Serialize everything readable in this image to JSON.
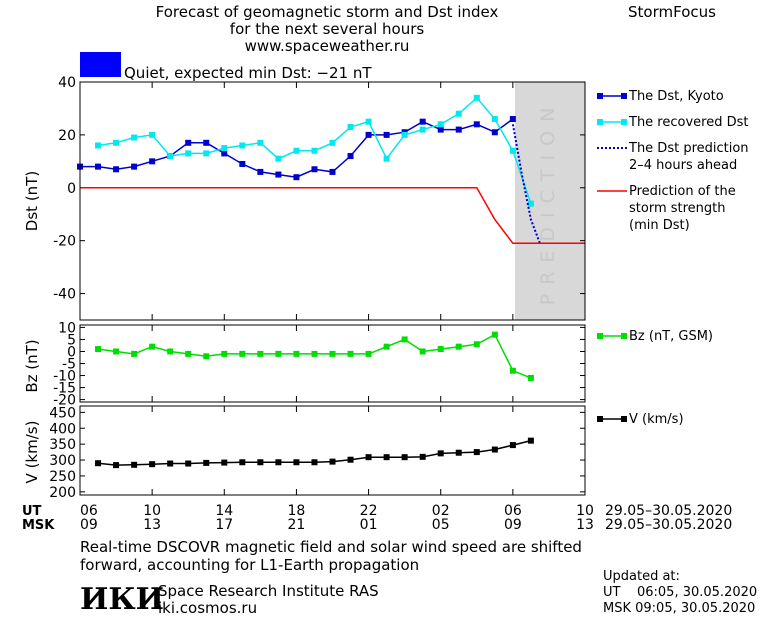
{
  "header": {
    "title_line1": "Forecast of geomagnetic storm and Dst index",
    "title_line2": "for the next several hours",
    "website": "www.spaceweather.ru",
    "brand": "StormFocus"
  },
  "status": {
    "text": "Quiet, expected min Dst: −21 nT",
    "color": "#0000ff"
  },
  "prediction_label": "PREDICTION",
  "time_axis": {
    "ut_label": "UT",
    "msk_label": "MSK",
    "ut_ticks": [
      "06",
      "10",
      "14",
      "18",
      "22",
      "02",
      "06",
      "10"
    ],
    "msk_ticks": [
      "09",
      "13",
      "17",
      "21",
      "01",
      "05",
      "09",
      "13"
    ],
    "ut_range": "29.05–30.05.2020",
    "msk_range": "29.05–30.05.2020"
  },
  "chart_data": [
    {
      "type": "line",
      "ylabel": "Dst (nT)",
      "ylim": [
        -50,
        40
      ],
      "xlim": [
        6,
        34
      ],
      "yticks": [
        40,
        20,
        0,
        -20,
        -40
      ],
      "prediction_region": [
        30,
        34
      ],
      "series": [
        {
          "name": "The Dst, Kyoto",
          "color": "#0000cc",
          "marker": "square",
          "x": [
            6,
            7,
            8,
            9,
            10,
            11,
            12,
            13,
            14,
            15,
            16,
            17,
            18,
            19,
            20,
            21,
            22,
            23,
            24,
            25,
            26,
            27,
            28,
            29,
            30
          ],
          "values": [
            8,
            8,
            7,
            8,
            10,
            12,
            17,
            17,
            13,
            9,
            6,
            5,
            4,
            7,
            6,
            12,
            20,
            20,
            21,
            25,
            22,
            22,
            24,
            21,
            26
          ]
        },
        {
          "name": "The recovered Dst",
          "color": "#00e8f0",
          "marker": "square",
          "x": [
            7,
            8,
            9,
            10,
            11,
            12,
            13,
            14,
            15,
            16,
            17,
            18,
            19,
            20,
            21,
            22,
            23,
            24,
            25,
            26,
            27,
            28,
            29,
            30,
            31
          ],
          "values": [
            16,
            17,
            19,
            20,
            12,
            13,
            13,
            15,
            16,
            17,
            11,
            14,
            14,
            17,
            23,
            25,
            11,
            20,
            22,
            24,
            28,
            34,
            26,
            14,
            -6
          ]
        },
        {
          "name": "The Dst prediction\n2–4 hours ahead",
          "color": "#0000cc",
          "style": "dotted",
          "x": [
            30,
            30.5,
            31,
            31.5
          ],
          "values": [
            24,
            5,
            -12,
            -21
          ]
        },
        {
          "name": "Prediction of the\nstorm strength\n(min Dst)",
          "color": "#ff0000",
          "x": [
            6,
            28,
            29,
            30,
            34
          ],
          "values": [
            0,
            0,
            -12,
            -21,
            -21
          ]
        }
      ]
    },
    {
      "type": "line",
      "ylabel": "Bz (nT)",
      "ylim": [
        -21,
        11
      ],
      "xlim": [
        6,
        34
      ],
      "yticks": [
        10,
        5,
        0,
        -5,
        -10,
        -15,
        -20
      ],
      "series": [
        {
          "name": "Bz (nT, GSM)",
          "color": "#00dd00",
          "marker": "square",
          "x": [
            7,
            8,
            9,
            10,
            11,
            12,
            13,
            14,
            15,
            16,
            17,
            18,
            19,
            20,
            21,
            22,
            23,
            24,
            25,
            26,
            27,
            28,
            29,
            30,
            31
          ],
          "values": [
            1,
            0,
            -1,
            2,
            0,
            -1,
            -2,
            -1,
            -1,
            -1,
            -1,
            -1,
            -1,
            -1,
            -1,
            -1,
            2,
            5,
            0,
            1,
            2,
            3,
            7,
            -8,
            -11
          ]
        }
      ]
    },
    {
      "type": "line",
      "ylabel": "V (km/s)",
      "ylim": [
        190,
        470
      ],
      "xlim": [
        6,
        34
      ],
      "yticks": [
        450,
        400,
        350,
        300,
        250,
        200
      ],
      "series": [
        {
          "name": "V (km/s)",
          "color": "#000000",
          "marker": "square",
          "x": [
            7,
            8,
            9,
            10,
            11,
            12,
            13,
            14,
            15,
            16,
            17,
            18,
            19,
            20,
            21,
            22,
            23,
            24,
            25,
            26,
            27,
            28,
            29,
            30,
            31
          ],
          "values": [
            290,
            284,
            285,
            287,
            289,
            289,
            291,
            292,
            293,
            293,
            293,
            293,
            293,
            295,
            301,
            309,
            309,
            309,
            310,
            321,
            323,
            325,
            333,
            347,
            361
          ]
        }
      ]
    }
  ],
  "footer": {
    "note_line1": "Real-time DSCOVR magnetic field and solar wind speed are shifted",
    "note_line2": "forward, accounting for L1-Earth propagation",
    "logo_text": "ИКИ",
    "institute": "Space Research Institute RAS",
    "institute_url": "iki.cosmos.ru",
    "updated_label": "Updated at:",
    "updated_ut": "UT    06:05, 30.05.2020",
    "updated_msk": "MSK 09:05, 30.05.2020"
  }
}
